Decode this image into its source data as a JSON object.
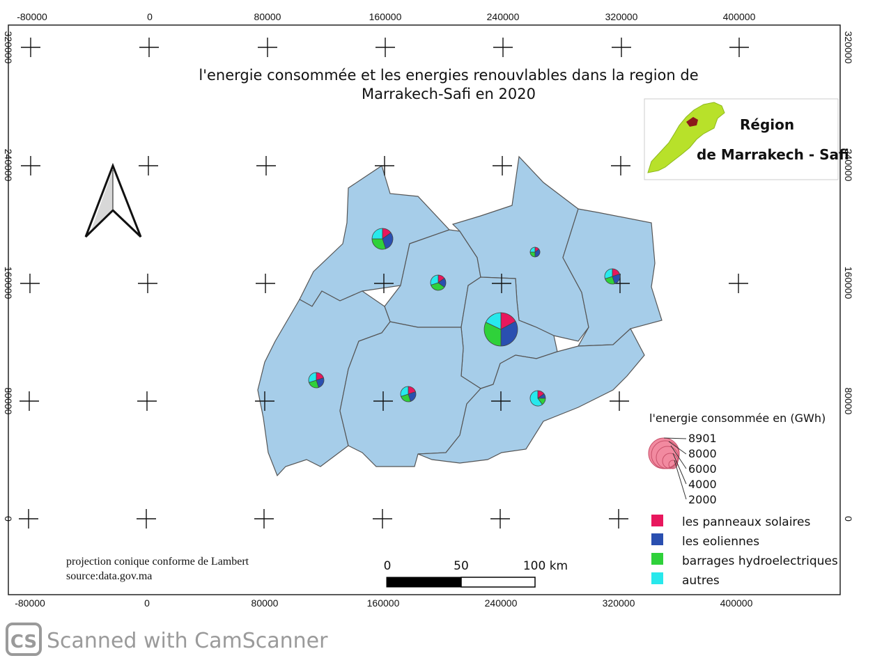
{
  "title": {
    "line1": "l'energie consommée et les energies renouvlables dans la region de",
    "line2": "Marrakech-Safi en 2020"
  },
  "axes": {
    "x_ticks": [
      "-80000",
      "0",
      "80000",
      "160000",
      "240000",
      "320000",
      "400000"
    ],
    "y_ticks": [
      "320000",
      "240000",
      "160000",
      "80000",
      "0"
    ]
  },
  "inset": {
    "label_line1": "Région",
    "label_line2": "de Marrakech - Safi",
    "morocco_color": "#b8e12a",
    "region_color": "#8b1a1a"
  },
  "legend": {
    "size_title": "l'energie consommée en (GWh)",
    "size_values": [
      "8901",
      "8000",
      "6000",
      "4000",
      "2000"
    ],
    "size_color": "#f28aa0",
    "categories": [
      {
        "label": "les panneaux solaires",
        "color": "#e8175d"
      },
      {
        "label": "les eoliennes",
        "color": "#2a4fb0"
      },
      {
        "label": "barrages hydroelectriques",
        "color": "#2fd13a"
      },
      {
        "label": "autres",
        "color": "#28e8ec"
      }
    ]
  },
  "projection": {
    "line1": "projection conique conforme de Lambert",
    "line2": "source:data.gov.ma"
  },
  "scale_bar": {
    "labels": [
      "0",
      "50",
      "100 km"
    ]
  },
  "map_style": {
    "region_fill": "#a6cde9",
    "region_stroke": "#555555"
  },
  "pie_charts": [
    {
      "id": "north-west",
      "size": "medium",
      "shares": [
        0.15,
        0.3,
        0.3,
        0.25
      ]
    },
    {
      "id": "north-center",
      "size": "small",
      "shares": [
        0.15,
        0.2,
        0.35,
        0.3
      ]
    },
    {
      "id": "north-east",
      "size": "tiny",
      "shares": [
        0.15,
        0.35,
        0.25,
        0.25
      ]
    },
    {
      "id": "east",
      "size": "small",
      "shares": [
        0.2,
        0.25,
        0.25,
        0.3
      ]
    },
    {
      "id": "marrakech",
      "size": "large",
      "shares": [
        0.17,
        0.33,
        0.32,
        0.18
      ]
    },
    {
      "id": "west",
      "size": "small",
      "shares": [
        0.2,
        0.25,
        0.25,
        0.3
      ]
    },
    {
      "id": "south-center",
      "size": "small",
      "shares": [
        0.2,
        0.25,
        0.25,
        0.3
      ]
    },
    {
      "id": "south-east",
      "size": "small",
      "shares": [
        0.15,
        0.1,
        0.15,
        0.6
      ]
    }
  ],
  "watermark": "Scanned with CamScanner",
  "watermark_logo": "CS"
}
